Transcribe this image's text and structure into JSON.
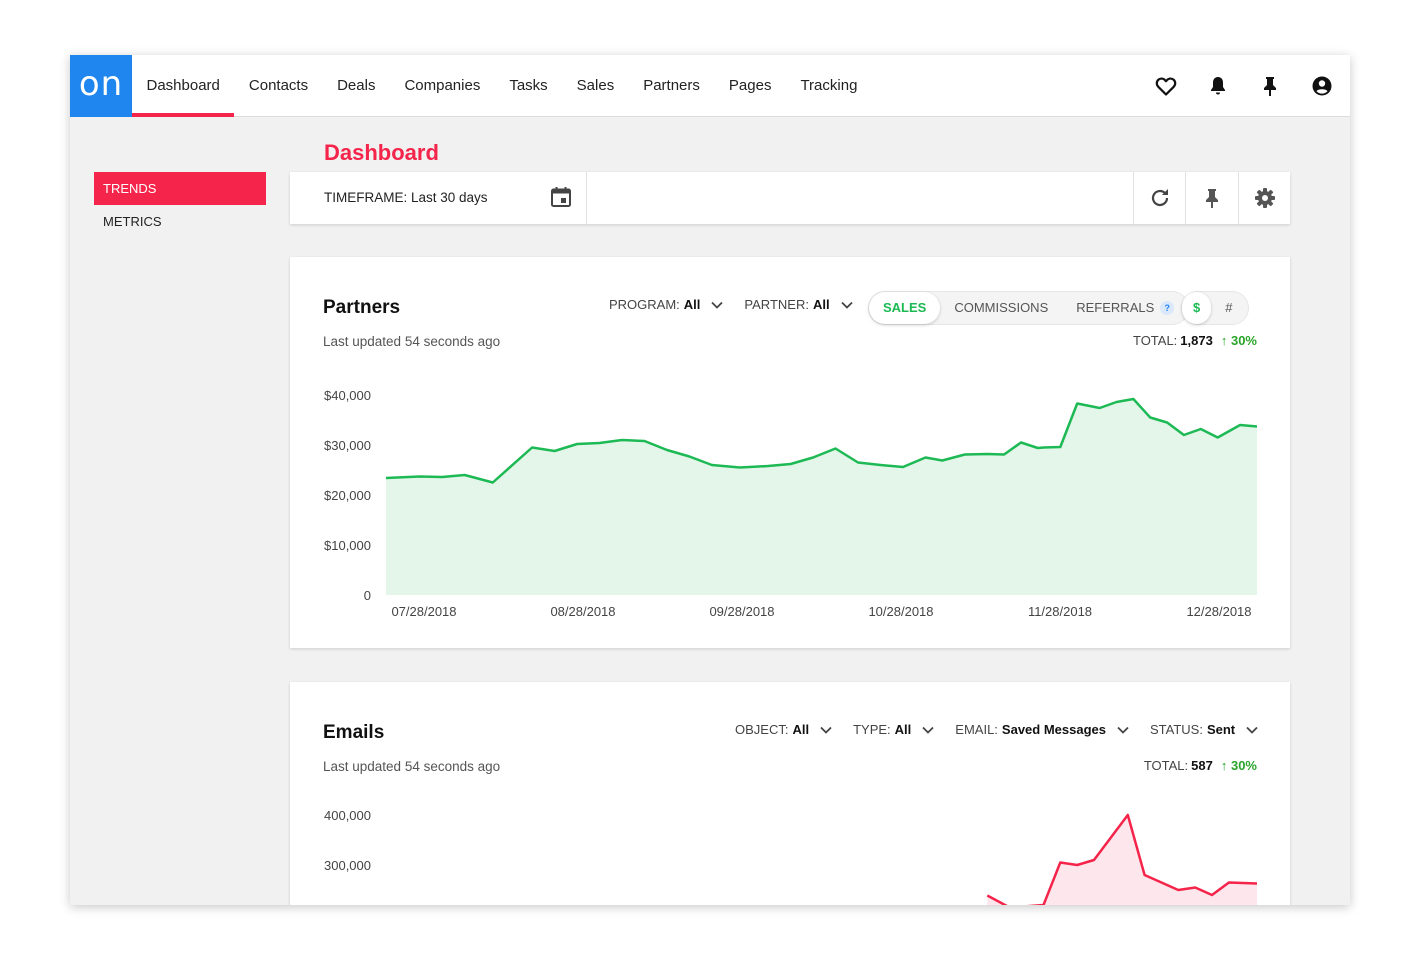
{
  "app": {
    "logo_text": "on"
  },
  "nav": {
    "items": [
      {
        "label": "Dashboard",
        "active": true
      },
      {
        "label": "Contacts"
      },
      {
        "label": "Deals"
      },
      {
        "label": "Companies"
      },
      {
        "label": "Tasks"
      },
      {
        "label": "Sales"
      },
      {
        "label": "Partners"
      },
      {
        "label": "Pages"
      },
      {
        "label": "Tracking"
      }
    ],
    "icons": [
      "heart-icon",
      "bell-icon",
      "pin-icon",
      "account-icon"
    ]
  },
  "sidebar": {
    "items": [
      {
        "label": "TRENDS",
        "active": true
      },
      {
        "label": "METRICS"
      }
    ]
  },
  "page": {
    "title": "Dashboard"
  },
  "toolbar": {
    "timeframe_label": "TIMEFRAME: Last 30 days",
    "icons": [
      "calendar-icon",
      "refresh-icon",
      "pin-icon",
      "gear-icon"
    ]
  },
  "colors": {
    "accent": "#f5244a",
    "brand": "#1f86f0",
    "partners_line": "#1db954",
    "partners_fill": "#e4f6ea",
    "emails_line": "#f5244a",
    "emails_fill": "#fde7ec",
    "positive": "#2aa52a"
  },
  "partners": {
    "title": "Partners",
    "updated": "Last updated 54 seconds ago",
    "filters": [
      {
        "name": "PROGRAM:",
        "value": "All"
      },
      {
        "name": "PARTNER:",
        "value": "All"
      }
    ],
    "metric_tabs": [
      {
        "label": "SALES",
        "selected": true
      },
      {
        "label": "COMMISSIONS"
      },
      {
        "label": "REFERRALS",
        "help": "?"
      }
    ],
    "unit_tabs": [
      {
        "label": "$",
        "selected": true
      },
      {
        "label": "#"
      }
    ],
    "total_label": "TOTAL:",
    "total_value": "1,873",
    "total_change": "30%"
  },
  "emails": {
    "title": "Emails",
    "updated": "Last updated 54 seconds ago",
    "filters": [
      {
        "name": "OBJECT:",
        "value": "All"
      },
      {
        "name": "TYPE:",
        "value": "All"
      },
      {
        "name": "EMAIL:",
        "value": "Saved Messages"
      },
      {
        "name": "STATUS:",
        "value": "Sent"
      }
    ],
    "total_label": "TOTAL:",
    "total_value": "587",
    "total_change": "30%"
  },
  "chart_data": [
    {
      "type": "area",
      "title": "Partners",
      "ylim": [
        0,
        40000
      ],
      "y_ticks": [
        "$40,000",
        "$30,000",
        "$20,000",
        "$10,000",
        "0"
      ],
      "x_ticks": [
        "07/28/2018",
        "08/28/2018",
        "09/28/2018",
        "10/28/2018",
        "11/28/2018",
        "12/28/2018"
      ],
      "x_range_days": [
        0,
        155
      ],
      "series": [
        {
          "x_days": [
            0,
            2,
            6,
            10,
            14,
            19,
            26,
            30,
            34,
            38,
            42,
            46,
            50,
            54,
            58,
            63,
            68,
            72,
            76,
            80,
            84,
            88,
            92,
            96,
            99,
            103,
            107,
            110,
            113,
            116,
            117,
            120,
            123,
            127,
            130,
            133,
            136,
            139,
            142,
            145,
            148,
            152,
            155
          ],
          "values": [
            23400,
            23500,
            23700,
            23600,
            24000,
            22500,
            29500,
            28800,
            30200,
            30400,
            31000,
            30800,
            29000,
            27700,
            26000,
            25500,
            25800,
            26200,
            27500,
            29300,
            26500,
            26000,
            25600,
            27500,
            26900,
            28100,
            28200,
            28100,
            30500,
            29400,
            29500,
            29600,
            38300,
            37400,
            38600,
            39200,
            35500,
            34500,
            32000,
            33200,
            31500,
            34000,
            33700
          ]
        }
      ]
    },
    {
      "type": "area",
      "title": "Emails",
      "y_ticks": [
        "400,000",
        "300,000"
      ],
      "x_range_days": [
        0,
        155
      ],
      "series": [
        {
          "x_days": [
            107,
            111,
            117,
            120,
            123,
            126,
            132,
            135,
            141,
            144,
            147,
            150,
            155
          ],
          "values": [
            239000,
            215000,
            220000,
            305000,
            300000,
            310000,
            400000,
            280000,
            250000,
            255000,
            240000,
            265000,
            263000
          ]
        }
      ]
    }
  ]
}
